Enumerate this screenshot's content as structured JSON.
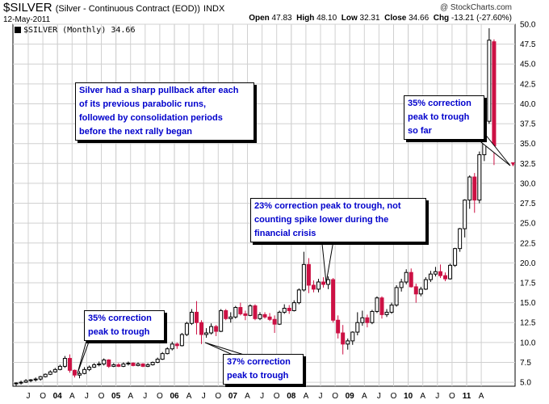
{
  "header": {
    "symbol": "$SILVER",
    "name": "(Silver - Continuous Contract (EOD))",
    "exchange": "INDX",
    "date": "12-May-2011",
    "brand": "@ StockCharts.com",
    "open_label": "Open",
    "open": "47.83",
    "high_label": "High",
    "high": "48.10",
    "low_label": "Low",
    "low": "32.31",
    "close_label": "Close",
    "close": "34.66",
    "chg_label": "Chg",
    "chg": "-13.21 (-27.60%)",
    "legend": "$SILVER (Monthly) 34.66"
  },
  "colors": {
    "up": "#000000",
    "down": "#cc1144",
    "grid": "#d0d0d0",
    "note_text": "#0000cc"
  },
  "annotations": [
    {
      "lines": [
        "Silver had a sharp pullback after each",
        "of its previous parabolic runs,",
        "followed by consolidation periods",
        "before the next rally began"
      ]
    },
    {
      "lines": [
        "23% correction peak to trough, not",
        "counting spike lower during the",
        "financial crisis"
      ]
    },
    {
      "lines": [
        "35% correction",
        "peak to trough",
        "so far"
      ]
    },
    {
      "lines": [
        "35% correction",
        "peak to trough"
      ]
    },
    {
      "lines": [
        "37% correction",
        "peak to trough"
      ]
    }
  ],
  "chart_data": {
    "type": "candlestick",
    "title": "$SILVER (Monthly) 34.66",
    "ylim": [
      4.5,
      50.0
    ],
    "y_ticks": [
      5.0,
      7.5,
      10.0,
      12.5,
      15.0,
      17.5,
      20.0,
      22.5,
      25.0,
      27.5,
      30.0,
      32.5,
      35.0,
      37.5,
      40.0,
      42.5,
      45.0,
      47.5,
      50.0
    ],
    "x_tick_labels": [
      "J",
      "O",
      "04",
      "A",
      "J",
      "O",
      "05",
      "A",
      "J",
      "O",
      "06",
      "A",
      "J",
      "O",
      "07",
      "A",
      "J",
      "O",
      "08",
      "A",
      "J",
      "O",
      "09",
      "A",
      "J",
      "O",
      "10",
      "A",
      "J",
      "O",
      "11",
      "A"
    ],
    "grid": true,
    "series": [
      {
        "name": "$SILVER",
        "bars": [
          {
            "o": 4.8,
            "h": 5.0,
            "l": 4.5,
            "c": 4.9
          },
          {
            "o": 4.9,
            "h": 5.2,
            "l": 4.7,
            "c": 5.0
          },
          {
            "o": 5.0,
            "h": 5.4,
            "l": 4.9,
            "c": 5.2
          },
          {
            "o": 5.2,
            "h": 5.4,
            "l": 5.0,
            "c": 5.3
          },
          {
            "o": 5.3,
            "h": 5.6,
            "l": 5.1,
            "c": 5.4
          },
          {
            "o": 5.4,
            "h": 5.8,
            "l": 5.2,
            "c": 5.7
          },
          {
            "o": 5.7,
            "h": 6.1,
            "l": 5.6,
            "c": 6.0
          },
          {
            "o": 6.0,
            "h": 6.5,
            "l": 5.9,
            "c": 6.3
          },
          {
            "o": 6.3,
            "h": 6.8,
            "l": 6.2,
            "c": 6.6
          },
          {
            "o": 6.6,
            "h": 7.2,
            "l": 6.5,
            "c": 7.0
          },
          {
            "o": 7.0,
            "h": 8.3,
            "l": 6.8,
            "c": 8.0
          },
          {
            "o": 8.0,
            "h": 8.5,
            "l": 6.2,
            "c": 6.5
          },
          {
            "o": 6.5,
            "h": 6.6,
            "l": 5.6,
            "c": 5.9
          },
          {
            "o": 5.9,
            "h": 6.4,
            "l": 5.5,
            "c": 6.1
          },
          {
            "o": 6.1,
            "h": 6.9,
            "l": 6.0,
            "c": 6.6
          },
          {
            "o": 6.6,
            "h": 7.1,
            "l": 6.4,
            "c": 6.9
          },
          {
            "o": 6.9,
            "h": 7.4,
            "l": 6.8,
            "c": 7.2
          },
          {
            "o": 7.2,
            "h": 7.6,
            "l": 7.0,
            "c": 7.3
          },
          {
            "o": 7.3,
            "h": 8.0,
            "l": 7.1,
            "c": 7.8
          },
          {
            "o": 7.8,
            "h": 7.9,
            "l": 6.8,
            "c": 7.0
          },
          {
            "o": 7.0,
            "h": 7.4,
            "l": 6.9,
            "c": 7.2
          },
          {
            "o": 7.2,
            "h": 7.4,
            "l": 6.9,
            "c": 7.0
          },
          {
            "o": 7.0,
            "h": 7.5,
            "l": 6.9,
            "c": 7.3
          },
          {
            "o": 7.3,
            "h": 7.6,
            "l": 7.1,
            "c": 7.4
          },
          {
            "o": 7.4,
            "h": 7.5,
            "l": 7.0,
            "c": 7.1
          },
          {
            "o": 7.1,
            "h": 7.5,
            "l": 7.0,
            "c": 7.3
          },
          {
            "o": 7.3,
            "h": 7.4,
            "l": 6.9,
            "c": 7.0
          },
          {
            "o": 7.0,
            "h": 7.4,
            "l": 6.9,
            "c": 7.2
          },
          {
            "o": 7.2,
            "h": 7.6,
            "l": 7.1,
            "c": 7.5
          },
          {
            "o": 7.5,
            "h": 8.1,
            "l": 7.4,
            "c": 7.9
          },
          {
            "o": 7.9,
            "h": 8.8,
            "l": 7.8,
            "c": 8.6
          },
          {
            "o": 8.6,
            "h": 9.4,
            "l": 8.5,
            "c": 9.2
          },
          {
            "o": 9.2,
            "h": 10.1,
            "l": 9.0,
            "c": 9.8
          },
          {
            "o": 9.8,
            "h": 10.0,
            "l": 9.2,
            "c": 9.6
          },
          {
            "o": 9.6,
            "h": 11.2,
            "l": 9.5,
            "c": 11.0
          },
          {
            "o": 11.0,
            "h": 12.6,
            "l": 10.8,
            "c": 12.4
          },
          {
            "o": 12.4,
            "h": 14.2,
            "l": 12.2,
            "c": 13.8
          },
          {
            "o": 13.8,
            "h": 15.2,
            "l": 11.0,
            "c": 12.5
          },
          {
            "o": 12.5,
            "h": 12.8,
            "l": 9.8,
            "c": 11.0
          },
          {
            "o": 11.0,
            "h": 11.8,
            "l": 10.6,
            "c": 11.2
          },
          {
            "o": 11.2,
            "h": 12.4,
            "l": 11.0,
            "c": 12.0
          },
          {
            "o": 12.0,
            "h": 12.2,
            "l": 10.8,
            "c": 11.4
          },
          {
            "o": 11.4,
            "h": 14.2,
            "l": 11.3,
            "c": 14.0
          },
          {
            "o": 14.0,
            "h": 14.2,
            "l": 12.8,
            "c": 13.0
          },
          {
            "o": 13.0,
            "h": 13.8,
            "l": 12.5,
            "c": 13.2
          },
          {
            "o": 13.2,
            "h": 14.6,
            "l": 13.0,
            "c": 14.4
          },
          {
            "o": 14.4,
            "h": 15.0,
            "l": 13.4,
            "c": 13.6
          },
          {
            "o": 13.6,
            "h": 14.0,
            "l": 12.8,
            "c": 13.4
          },
          {
            "o": 13.4,
            "h": 14.8,
            "l": 13.3,
            "c": 14.6
          },
          {
            "o": 14.6,
            "h": 14.8,
            "l": 12.8,
            "c": 13.0
          },
          {
            "o": 13.0,
            "h": 13.8,
            "l": 12.8,
            "c": 13.5
          },
          {
            "o": 13.5,
            "h": 13.8,
            "l": 13.0,
            "c": 13.2
          },
          {
            "o": 13.2,
            "h": 13.7,
            "l": 12.7,
            "c": 12.9
          },
          {
            "o": 12.9,
            "h": 13.4,
            "l": 11.2,
            "c": 12.3
          },
          {
            "o": 12.3,
            "h": 14.0,
            "l": 12.2,
            "c": 13.8
          },
          {
            "o": 13.8,
            "h": 14.8,
            "l": 13.6,
            "c": 14.3
          },
          {
            "o": 14.3,
            "h": 14.7,
            "l": 13.6,
            "c": 14.0
          },
          {
            "o": 14.0,
            "h": 15.3,
            "l": 13.9,
            "c": 15.0
          },
          {
            "o": 15.0,
            "h": 16.8,
            "l": 14.8,
            "c": 16.6
          },
          {
            "o": 16.6,
            "h": 21.4,
            "l": 16.4,
            "c": 19.8
          },
          {
            "o": 19.8,
            "h": 20.6,
            "l": 16.2,
            "c": 17.2
          },
          {
            "o": 17.2,
            "h": 17.8,
            "l": 16.3,
            "c": 16.7
          },
          {
            "o": 16.7,
            "h": 18.0,
            "l": 16.3,
            "c": 17.6
          },
          {
            "o": 17.6,
            "h": 18.2,
            "l": 16.9,
            "c": 17.3
          },
          {
            "o": 17.3,
            "h": 18.3,
            "l": 16.7,
            "c": 17.9
          },
          {
            "o": 17.9,
            "h": 18.1,
            "l": 12.5,
            "c": 12.8
          },
          {
            "o": 12.8,
            "h": 13.4,
            "l": 10.5,
            "c": 11.2
          },
          {
            "o": 11.2,
            "h": 12.2,
            "l": 8.5,
            "c": 9.8
          },
          {
            "o": 9.8,
            "h": 10.5,
            "l": 9.1,
            "c": 10.2
          },
          {
            "o": 10.2,
            "h": 11.4,
            "l": 9.7,
            "c": 11.3
          },
          {
            "o": 11.3,
            "h": 13.8,
            "l": 10.9,
            "c": 12.5
          },
          {
            "o": 12.5,
            "h": 14.0,
            "l": 12.1,
            "c": 13.1
          },
          {
            "o": 13.1,
            "h": 13.5,
            "l": 11.9,
            "c": 12.5
          },
          {
            "o": 12.5,
            "h": 14.1,
            "l": 12.3,
            "c": 13.9
          },
          {
            "o": 13.9,
            "h": 15.8,
            "l": 13.7,
            "c": 15.6
          },
          {
            "o": 15.6,
            "h": 15.8,
            "l": 13.0,
            "c": 13.5
          },
          {
            "o": 13.5,
            "h": 14.2,
            "l": 13.2,
            "c": 13.8
          },
          {
            "o": 13.8,
            "h": 15.0,
            "l": 13.6,
            "c": 14.7
          },
          {
            "o": 14.7,
            "h": 17.2,
            "l": 14.5,
            "c": 16.9
          },
          {
            "o": 16.9,
            "h": 18.0,
            "l": 16.4,
            "c": 17.6
          },
          {
            "o": 17.6,
            "h": 19.2,
            "l": 17.3,
            "c": 18.8
          },
          {
            "o": 18.8,
            "h": 19.3,
            "l": 16.9,
            "c": 17.0
          },
          {
            "o": 17.0,
            "h": 17.4,
            "l": 15.0,
            "c": 16.1
          },
          {
            "o": 16.1,
            "h": 17.0,
            "l": 15.8,
            "c": 16.7
          },
          {
            "o": 16.7,
            "h": 18.2,
            "l": 16.6,
            "c": 17.9
          },
          {
            "o": 17.9,
            "h": 19.0,
            "l": 17.6,
            "c": 18.6
          },
          {
            "o": 18.6,
            "h": 19.5,
            "l": 18.3,
            "c": 18.9
          },
          {
            "o": 18.9,
            "h": 19.8,
            "l": 18.1,
            "c": 18.4
          },
          {
            "o": 18.4,
            "h": 18.8,
            "l": 17.7,
            "c": 18.0
          },
          {
            "o": 18.0,
            "h": 19.9,
            "l": 17.9,
            "c": 19.7
          },
          {
            "o": 19.7,
            "h": 21.9,
            "l": 19.5,
            "c": 21.8
          },
          {
            "o": 21.8,
            "h": 24.4,
            "l": 21.4,
            "c": 24.3
          },
          {
            "o": 24.3,
            "h": 28.0,
            "l": 23.2,
            "c": 27.9
          },
          {
            "o": 27.9,
            "h": 31.0,
            "l": 26.8,
            "c": 30.8
          },
          {
            "o": 30.8,
            "h": 31.3,
            "l": 26.3,
            "c": 27.9
          },
          {
            "o": 27.9,
            "h": 34.0,
            "l": 27.5,
            "c": 33.6
          },
          {
            "o": 33.6,
            "h": 38.3,
            "l": 32.8,
            "c": 37.8
          },
          {
            "o": 37.8,
            "h": 49.5,
            "l": 37.5,
            "c": 48.0
          },
          {
            "o": 47.8,
            "h": 48.1,
            "l": 32.3,
            "c": 34.7
          }
        ]
      }
    ]
  }
}
